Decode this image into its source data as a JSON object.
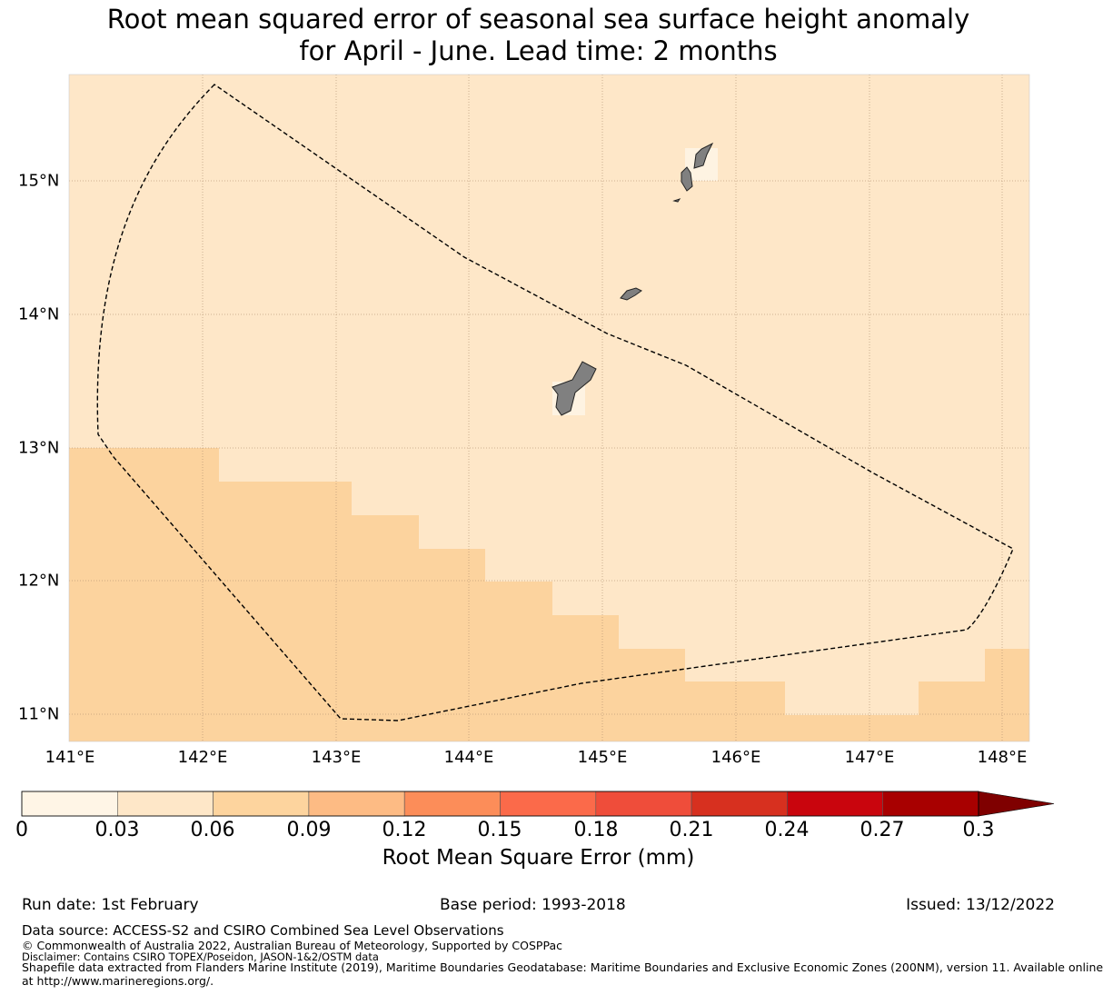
{
  "title": {
    "line1": "Root mean squared error of seasonal sea surface height anomaly",
    "line2": "for April - June. Lead time: 2 months"
  },
  "map": {
    "lon_range": [
      141.0,
      148.2
    ],
    "lat_range": [
      10.8,
      15.8
    ],
    "lon_ticks": [
      "141°E",
      "142°E",
      "143°E",
      "144°E",
      "145°E",
      "146°E",
      "147°E",
      "148°E"
    ],
    "lat_ticks": [
      "11°N",
      "12°N",
      "13°N",
      "14°N",
      "15°N"
    ],
    "region": "Guam and Northern Mariana Islands EEZ",
    "field_colors": {
      "light": "#fee7c8",
      "medium": "#fcd39e",
      "land": "#808080",
      "coast_fill": "#fef3e2"
    }
  },
  "colorbar": {
    "boundaries": [
      "0",
      "0.03",
      "0.06",
      "0.09",
      "0.12",
      "0.15",
      "0.18",
      "0.21",
      "0.24",
      "0.27",
      "0.3"
    ],
    "colors": [
      "#fff5e6",
      "#fee7c8",
      "#fdd49e",
      "#fdbb84",
      "#fc8d59",
      "#fb6a4a",
      "#ef4d3a",
      "#d7301f",
      "#c9050d",
      "#a80000"
    ],
    "extend_color": "#7f0000",
    "label": "Root Mean Square Error (mm)"
  },
  "footer": {
    "run_date": "Run date: 1st February",
    "base_period": "Base period: 1993-2018",
    "issued": "Issued: 13/12/2022",
    "data_source": "Data source: ACCESS-S2 and CSIRO Combined Sea Level Observations",
    "copyright": "© Commonwealth of Australia 2022, Australian Bureau of Meteorology, Supported by COSPPac",
    "disclaimer": "Disclaimer: Contains CSIRO TOPEX/Poseidon, JASON-1&2/OSTM data",
    "shapefile_1": "Shapefile data extracted from Flanders Marine Institute (2019), Maritime Boundaries Geodatabase: Maritime Boundaries and Exclusive Economic Zones (200NM), version 11. Available online",
    "shapefile_2": "at http://www.marineregions.org/."
  }
}
